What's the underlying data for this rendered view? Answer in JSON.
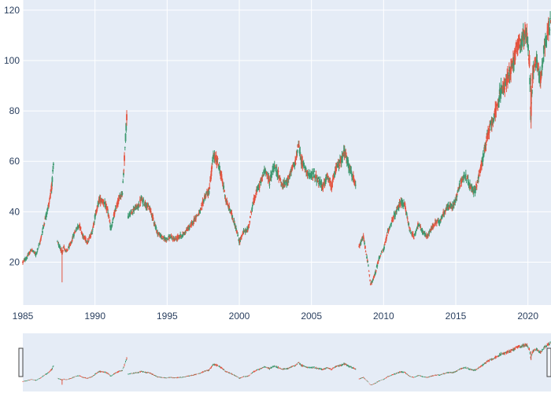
{
  "chart_data": {
    "type": "candlestick",
    "title": "",
    "xlabel": "",
    "ylabel": "",
    "x_range": [
      1985.0,
      2021.6
    ],
    "ylim": [
      3,
      124
    ],
    "x_ticks": [
      1985,
      1990,
      1995,
      2000,
      2005,
      2010,
      2015,
      2020
    ],
    "x_tick_labels": [
      "1985",
      "1990",
      "1995",
      "2000",
      "2005",
      "2010",
      "2015",
      "2020"
    ],
    "y_ticks": [
      20,
      40,
      60,
      80,
      100,
      120
    ],
    "y_tick_labels": [
      "20",
      "40",
      "60",
      "80",
      "100",
      "120"
    ],
    "grid": true,
    "legend": "none",
    "rangeslider": true,
    "colors": {
      "increasing": "#3D9970",
      "decreasing": "#E4533F",
      "plot_bg": "#E5ECF6",
      "grid": "#ffffff",
      "tick_text": "#2a3f5f"
    },
    "price_path": [
      [
        1985.0,
        20
      ],
      [
        1985.3,
        22
      ],
      [
        1985.6,
        25
      ],
      [
        1985.9,
        23
      ],
      [
        1986.2,
        28
      ],
      [
        1986.5,
        36
      ],
      [
        1986.8,
        43
      ],
      [
        1987.0,
        50
      ],
      [
        1987.15,
        60
      ],
      [
        1987.4,
        28
      ],
      [
        1987.7,
        24
      ],
      [
        1987.85,
        26
      ],
      [
        1988.0,
        24
      ],
      [
        1988.3,
        27
      ],
      [
        1988.6,
        32
      ],
      [
        1988.9,
        35
      ],
      [
        1989.2,
        30
      ],
      [
        1989.5,
        28
      ],
      [
        1989.8,
        32
      ],
      [
        1990.0,
        38
      ],
      [
        1990.3,
        45
      ],
      [
        1990.6,
        44
      ],
      [
        1990.9,
        40
      ],
      [
        1991.1,
        33
      ],
      [
        1991.3,
        38
      ],
      [
        1991.6,
        44
      ],
      [
        1991.9,
        48
      ],
      [
        1992.0,
        57
      ],
      [
        1992.2,
        78
      ],
      [
        1992.3,
        38
      ],
      [
        1992.7,
        41
      ],
      [
        1993.0,
        42
      ],
      [
        1993.2,
        45
      ],
      [
        1993.5,
        43
      ],
      [
        1993.8,
        41
      ],
      [
        1994.0,
        38
      ],
      [
        1994.3,
        32
      ],
      [
        1994.6,
        30
      ],
      [
        1994.9,
        29
      ],
      [
        1995.2,
        30
      ],
      [
        1995.5,
        29
      ],
      [
        1995.8,
        30
      ],
      [
        1996.1,
        31
      ],
      [
        1996.4,
        33
      ],
      [
        1996.7,
        35
      ],
      [
        1997.0,
        38
      ],
      [
        1997.3,
        40
      ],
      [
        1997.6,
        46
      ],
      [
        1997.9,
        48
      ],
      [
        1998.2,
        62
      ],
      [
        1998.5,
        60
      ],
      [
        1998.8,
        53
      ],
      [
        1999.1,
        44
      ],
      [
        1999.4,
        40
      ],
      [
        1999.7,
        35
      ],
      [
        2000.0,
        28
      ],
      [
        2000.3,
        32
      ],
      [
        2000.6,
        33
      ],
      [
        2000.9,
        42
      ],
      [
        2001.2,
        48
      ],
      [
        2001.5,
        52
      ],
      [
        2001.8,
        57
      ],
      [
        2002.1,
        52
      ],
      [
        2002.4,
        58
      ],
      [
        2002.7,
        55
      ],
      [
        2003.0,
        50
      ],
      [
        2003.3,
        52
      ],
      [
        2003.6,
        56
      ],
      [
        2003.9,
        60
      ],
      [
        2004.1,
        67
      ],
      [
        2004.3,
        60
      ],
      [
        2004.6,
        57
      ],
      [
        2004.9,
        54
      ],
      [
        2005.2,
        55
      ],
      [
        2005.5,
        52
      ],
      [
        2005.8,
        50
      ],
      [
        2006.1,
        54
      ],
      [
        2006.4,
        50
      ],
      [
        2006.7,
        57
      ],
      [
        2007.0,
        60
      ],
      [
        2007.3,
        64
      ],
      [
        2007.6,
        58
      ],
      [
        2007.9,
        53
      ],
      [
        2008.1,
        49
      ],
      [
        2008.3,
        26
      ],
      [
        2008.6,
        30
      ],
      [
        2008.9,
        20
      ],
      [
        2009.1,
        11
      ],
      [
        2009.4,
        15
      ],
      [
        2009.7,
        22
      ],
      [
        2010.0,
        25
      ],
      [
        2010.3,
        32
      ],
      [
        2010.6,
        37
      ],
      [
        2010.9,
        40
      ],
      [
        2011.2,
        44
      ],
      [
        2011.5,
        42
      ],
      [
        2011.8,
        33
      ],
      [
        2012.1,
        30
      ],
      [
        2012.4,
        35
      ],
      [
        2012.7,
        32
      ],
      [
        2013.0,
        30
      ],
      [
        2013.3,
        33
      ],
      [
        2013.6,
        36
      ],
      [
        2013.9,
        36
      ],
      [
        2014.2,
        40
      ],
      [
        2014.5,
        42
      ],
      [
        2014.8,
        42
      ],
      [
        2015.1,
        47
      ],
      [
        2015.4,
        53
      ],
      [
        2015.7,
        54
      ],
      [
        2016.0,
        50
      ],
      [
        2016.3,
        48
      ],
      [
        2016.6,
        54
      ],
      [
        2016.9,
        62
      ],
      [
        2017.2,
        70
      ],
      [
        2017.5,
        76
      ],
      [
        2017.8,
        80
      ],
      [
        2018.1,
        88
      ],
      [
        2018.4,
        90
      ],
      [
        2018.7,
        95
      ],
      [
        2019.0,
        100
      ],
      [
        2019.3,
        106
      ],
      [
        2019.6,
        108
      ],
      [
        2019.9,
        112
      ],
      [
        2020.1,
        100
      ],
      [
        2020.2,
        78
      ],
      [
        2020.35,
        96
      ],
      [
        2020.6,
        100
      ],
      [
        2020.9,
        92
      ],
      [
        2021.1,
        104
      ],
      [
        2021.35,
        112
      ],
      [
        2021.6,
        115
      ]
    ]
  }
}
